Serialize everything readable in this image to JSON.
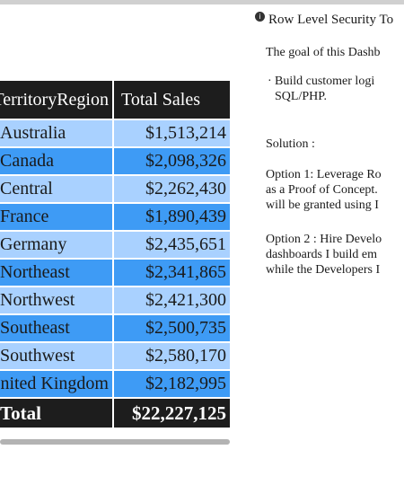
{
  "table": {
    "headers": {
      "region": "TerritoryRegion",
      "sales": "Total Sales"
    },
    "rows": [
      {
        "region": "Australia",
        "sales": "$1,513,214"
      },
      {
        "region": "Canada",
        "sales": "$2,098,326"
      },
      {
        "region": "Central",
        "sales": "$2,262,430"
      },
      {
        "region": "France",
        "sales": "$1,890,439"
      },
      {
        "region": "Germany",
        "sales": "$2,435,651"
      },
      {
        "region": "Northeast",
        "sales": "$2,341,865"
      },
      {
        "region": "Northwest",
        "sales": "$2,421,300"
      },
      {
        "region": "Southeast",
        "sales": "$2,500,735"
      },
      {
        "region": "Southwest",
        "sales": "$2,580,170"
      },
      {
        "region": "United Kingdom",
        "sales": "$2,182,995"
      }
    ],
    "total": {
      "region": "Total",
      "sales": "$22,227,125"
    }
  },
  "text_panel": {
    "title": "Row Level Security To",
    "goal": "The goal of this Dashb",
    "bullet_line1": "Build customer logi",
    "bullet_line2": "SQL/PHP.",
    "solution_label": "Solution :",
    "option1_line1": "Option 1: Leverage Ro",
    "option1_line2": "as a Proof of Concept.",
    "option1_line3": "will be granted using I",
    "option2_line1": "Option 2 : Hire Develo",
    "option2_line2": "dashboards I build em",
    "option2_line3": "while the Developers I"
  },
  "colors": {
    "header_bg": "#1d1d1d",
    "row_light": "#a9d1ff",
    "row_dark": "#3e9bf5"
  }
}
